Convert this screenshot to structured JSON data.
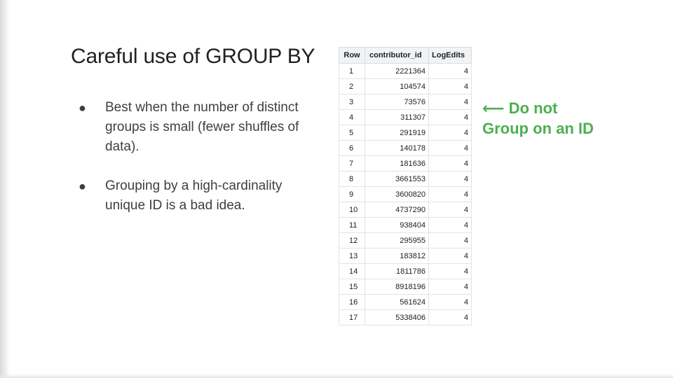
{
  "slide": {
    "title": "Careful use of GROUP BY",
    "bullets": [
      "Best when the number of distinct groups is small (fewer shuffles of data).",
      "Grouping by a high-cardinality unique ID is a bad idea."
    ],
    "bullet_char": "●",
    "annotation": {
      "line1": "⟵ Do not",
      "line2": "Group on an ID",
      "color": "#4caf50"
    }
  },
  "table": {
    "columns": [
      "Row",
      "contributor_id",
      "LogEdits"
    ],
    "rows": [
      [
        "1",
        "2221364",
        "4"
      ],
      [
        "2",
        "104574",
        "4"
      ],
      [
        "3",
        "73576",
        "4"
      ],
      [
        "4",
        "311307",
        "4"
      ],
      [
        "5",
        "291919",
        "4"
      ],
      [
        "6",
        "140178",
        "4"
      ],
      [
        "7",
        "181636",
        "4"
      ],
      [
        "8",
        "3661553",
        "4"
      ],
      [
        "9",
        "3600820",
        "4"
      ],
      [
        "10",
        "4737290",
        "4"
      ],
      [
        "11",
        "938404",
        "4"
      ],
      [
        "12",
        "295955",
        "4"
      ],
      [
        "13",
        "183812",
        "4"
      ],
      [
        "14",
        "1811786",
        "4"
      ],
      [
        "15",
        "8918196",
        "4"
      ],
      [
        "16",
        "561624",
        "4"
      ],
      [
        "17",
        "5338406",
        "4"
      ]
    ]
  }
}
